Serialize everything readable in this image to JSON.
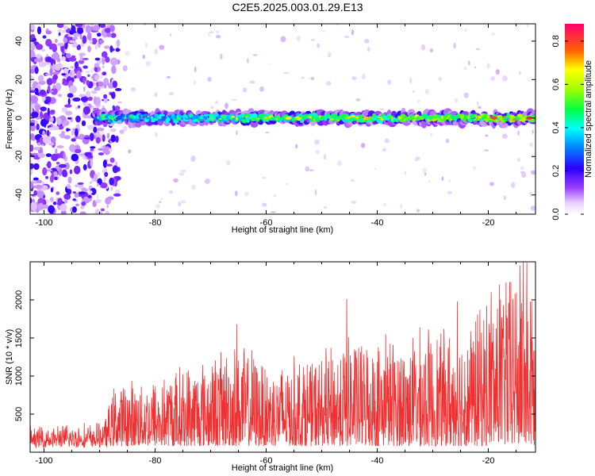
{
  "title": "C2E5.2025.003.01.29.E13",
  "chart_data": [
    {
      "type": "heatmap",
      "xlabel": "Height of straight line (km)",
      "ylabel": "Frequency (Hz)",
      "xlim": [
        -102.5,
        -11.5
      ],
      "ylim": [
        -50,
        49
      ],
      "x_ticks": [
        "-100",
        "-80",
        "-60",
        "-40",
        "-20"
      ],
      "x_tick_values": [
        -100,
        -80,
        -60,
        -40,
        -20
      ],
      "y_ticks": [
        "40",
        "20",
        "0",
        "-20",
        "-40"
      ],
      "y_tick_values": [
        40,
        20,
        0,
        -20,
        -40
      ],
      "colorbar": {
        "label": "Normalized spectral amplitude",
        "range": [
          0,
          0.88
        ],
        "ticks": [
          "0.0",
          "0.2",
          "0.4",
          "0.6",
          "0.8"
        ],
        "tick_values": [
          0,
          0.2,
          0.4,
          0.6,
          0.8
        ]
      },
      "band_center_hz": 0,
      "band_halfwidth_hz": 4,
      "noise_region_end_km": -88
    },
    {
      "type": "line",
      "xlabel": "Height of straight line (km)",
      "ylabel": "SNR (10 * v/v)",
      "xlim": [
        -102.5,
        -11.5
      ],
      "ylim": [
        0,
        2500
      ],
      "x_ticks": [
        "-100",
        "-80",
        "-60",
        "-40",
        "-20"
      ],
      "x_tick_values": [
        -100,
        -80,
        -60,
        -40,
        -20
      ],
      "y_ticks": [
        "500",
        "1000",
        "1500",
        "2000"
      ],
      "y_tick_values": [
        500,
        1000,
        1500,
        2000
      ],
      "color": "#f03030",
      "envelope": {
        "x": [
          -102.5,
          -90,
          -87,
          -80,
          -70,
          -65,
          -60,
          -50,
          -45,
          -40,
          -30,
          -25,
          -20,
          -15,
          -13,
          -11.5
        ],
        "y": [
          380,
          420,
          820,
          900,
          1150,
          1300,
          1100,
          1150,
          1400,
          1300,
          1450,
          1450,
          1800,
          2200,
          2500,
          1500
        ]
      },
      "peaks": [
        {
          "x": -65.3,
          "y": 1680
        },
        {
          "x": -45.5,
          "y": 2010
        },
        {
          "x": -38.5,
          "y": 1550
        },
        {
          "x": -25.6,
          "y": 1980
        },
        {
          "x": -19.5,
          "y": 2100
        },
        {
          "x": -18.0,
          "y": 2200
        },
        {
          "x": -16.8,
          "y": 2230
        },
        {
          "x": -13.7,
          "y": 2500
        }
      ]
    }
  ]
}
